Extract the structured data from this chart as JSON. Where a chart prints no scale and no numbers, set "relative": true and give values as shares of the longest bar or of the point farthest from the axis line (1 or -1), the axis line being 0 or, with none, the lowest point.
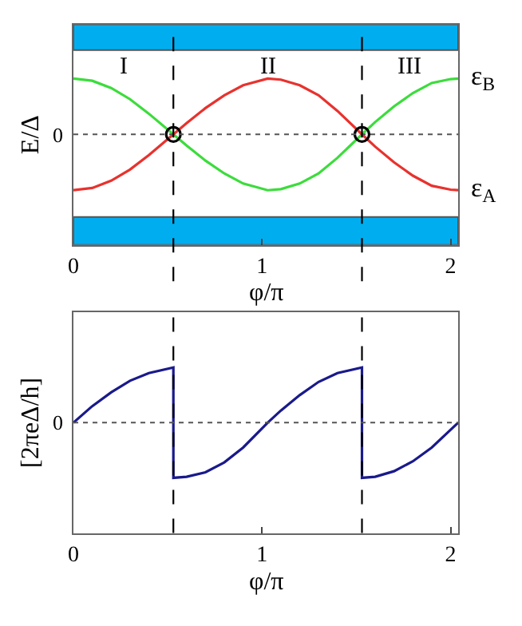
{
  "chart_data": [
    {
      "type": "line",
      "relative": true,
      "ylabel": "E/Δ",
      "xlabel": "φ/π",
      "xlim": [
        0,
        2.04
      ],
      "xticks": [
        0,
        1,
        2
      ],
      "grid": false,
      "legend": false,
      "tick_labels": "x",
      "x": [
        0,
        0.1,
        0.2,
        0.3,
        0.4,
        0.53,
        0.6,
        0.7,
        0.8,
        0.9,
        1.03,
        1.1,
        1.2,
        1.3,
        1.4,
        1.53,
        1.6,
        1.7,
        1.8,
        1.9,
        2.0,
        2.04
      ],
      "series": [
        {
          "name": "ε$_{B}$",
          "color": "#3cdc3c",
          "values": [
            1,
            0.96,
            0.83,
            0.63,
            0.37,
            0,
            -0.2,
            -0.47,
            -0.7,
            -0.88,
            -1,
            -0.98,
            -0.88,
            -0.7,
            -0.42,
            0,
            0.22,
            0.5,
            0.74,
            0.92,
            0.99,
            1
          ]
        },
        {
          "name": "ε$_{A}$",
          "color": "#e8322e",
          "values": [
            -1,
            -0.96,
            -0.83,
            -0.63,
            -0.37,
            0,
            0.2,
            0.47,
            0.7,
            0.88,
            1,
            0.98,
            0.88,
            0.7,
            0.42,
            0,
            -0.22,
            -0.5,
            -0.74,
            -0.92,
            -0.99,
            -1
          ]
        },
        {
          "color": "#000000",
          "type": "scatter",
          "marker": "circle",
          "x": [
            0.53,
            1.53
          ],
          "values": [
            0,
            0
          ]
        }
      ],
      "bands": [
        {
          "axis": "y",
          "from": 1.51,
          "to": 1.97,
          "color": "#00aeef"
        },
        {
          "axis": "y",
          "from": -1.98,
          "to": -1.48,
          "color": "#00aeef"
        }
      ],
      "ref_lines": [
        {
          "axis": "y",
          "value": 0,
          "label": "0",
          "line_style": "dotted",
          "color": "#555555"
        },
        {
          "axis": "x",
          "value": 0.53,
          "line_style": "dashed",
          "color": "#000000"
        },
        {
          "axis": "x",
          "value": 1.53,
          "line_style": "dashed",
          "color": "#000000"
        }
      ],
      "annotations": [
        "I",
        "II",
        "III"
      ]
    },
    {
      "type": "line",
      "relative": true,
      "ylabel": "[2πeΔ/h]",
      "xlabel": "φ/π",
      "xlim": [
        0,
        2.04
      ],
      "xticks": [
        0,
        1,
        2
      ],
      "grid": false,
      "legend": false,
      "tick_labels": "x",
      "x": [
        0,
        0.1,
        0.2,
        0.3,
        0.4,
        0.53,
        0.53,
        0.6,
        0.7,
        0.8,
        0.9,
        1.03,
        1.1,
        1.2,
        1.3,
        1.4,
        1.53,
        1.53,
        1.6,
        1.7,
        1.8,
        1.9,
        2.04
      ],
      "series": [
        {
          "color": "#1a1a8c",
          "values": [
            0,
            0.3,
            0.55,
            0.76,
            0.9,
            1,
            -1,
            -0.98,
            -0.9,
            -0.72,
            -0.45,
            0,
            0.22,
            0.5,
            0.74,
            0.9,
            1,
            -1,
            -0.98,
            -0.88,
            -0.7,
            -0.45,
            0
          ]
        }
      ],
      "ref_lines": [
        {
          "axis": "y",
          "value": 0,
          "label": "0",
          "line_style": "dotted",
          "color": "#555555"
        },
        {
          "axis": "x",
          "value": 0.53,
          "line_style": "dashed",
          "color": "#000000"
        },
        {
          "axis": "x",
          "value": 1.53,
          "line_style": "dashed",
          "color": "#000000"
        }
      ]
    }
  ]
}
